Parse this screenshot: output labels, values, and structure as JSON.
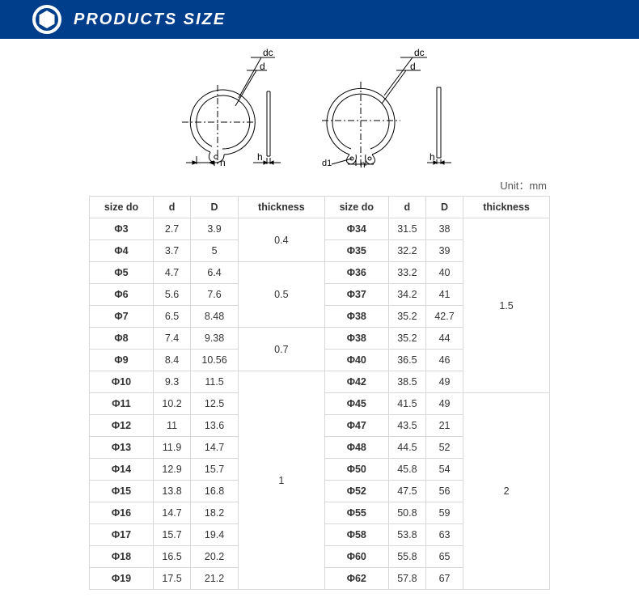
{
  "header": {
    "title": "PRODUCTS SIZE",
    "bar_color": "#003e8c",
    "title_color": "#ffffff"
  },
  "diagram": {
    "labels": {
      "dc": "dc",
      "d": "d",
      "n": "n",
      "h": "h",
      "d1": "d1"
    },
    "stroke": "#000000",
    "stroke_width": 1
  },
  "table": {
    "unit_label": "Unit：mm",
    "border_color": "#d8d8d8",
    "columns_left": [
      "size do",
      "d",
      "D",
      "thickness"
    ],
    "columns_right": [
      "size do",
      "d",
      "D",
      "thickness"
    ],
    "thickness_groups_left": [
      {
        "value": "0.4",
        "span": 2
      },
      {
        "value": "0.5",
        "span": 3
      },
      {
        "value": "0.7",
        "span": 2
      },
      {
        "value": "1",
        "span": 10
      }
    ],
    "thickness_groups_right": [
      {
        "value": "1.5",
        "span": 8
      },
      {
        "value": "2",
        "span": 9
      }
    ],
    "rows_left": [
      {
        "size": "Φ3",
        "d": "2.7",
        "D": "3.9"
      },
      {
        "size": "Φ4",
        "d": "3.7",
        "D": "5"
      },
      {
        "size": "Φ5",
        "d": "4.7",
        "D": "6.4"
      },
      {
        "size": "Φ6",
        "d": "5.6",
        "D": "7.6"
      },
      {
        "size": "Φ7",
        "d": "6.5",
        "D": "8.48"
      },
      {
        "size": "Φ8",
        "d": "7.4",
        "D": "9.38"
      },
      {
        "size": "Φ9",
        "d": "8.4",
        "D": "10.56"
      },
      {
        "size": "Φ10",
        "d": "9.3",
        "D": "11.5"
      },
      {
        "size": "Φ11",
        "d": "10.2",
        "D": "12.5"
      },
      {
        "size": "Φ12",
        "d": "11",
        "D": "13.6"
      },
      {
        "size": "Φ13",
        "d": "11.9",
        "D": "14.7"
      },
      {
        "size": "Φ14",
        "d": "12.9",
        "D": "15.7"
      },
      {
        "size": "Φ15",
        "d": "13.8",
        "D": "16.8"
      },
      {
        "size": "Φ16",
        "d": "14.7",
        "D": "18.2"
      },
      {
        "size": "Φ17",
        "d": "15.7",
        "D": "19.4"
      },
      {
        "size": "Φ18",
        "d": "16.5",
        "D": "20.2"
      },
      {
        "size": "Φ19",
        "d": "17.5",
        "D": "21.2"
      }
    ],
    "rows_right": [
      {
        "size": "Φ34",
        "d": "31.5",
        "D": "38"
      },
      {
        "size": "Φ35",
        "d": "32.2",
        "D": "39"
      },
      {
        "size": "Φ36",
        "d": "33.2",
        "D": "40"
      },
      {
        "size": "Φ37",
        "d": "34.2",
        "D": "41"
      },
      {
        "size": "Φ38",
        "d": "35.2",
        "D": "42.7"
      },
      {
        "size": "Φ38",
        "d": "35.2",
        "D": "44"
      },
      {
        "size": "Φ40",
        "d": "36.5",
        "D": "46"
      },
      {
        "size": "Φ42",
        "d": "38.5",
        "D": "49"
      },
      {
        "size": "Φ45",
        "d": "41.5",
        "D": "49"
      },
      {
        "size": "Φ47",
        "d": "43.5",
        "D": "21"
      },
      {
        "size": "Φ48",
        "d": "44.5",
        "D": "52"
      },
      {
        "size": "Φ50",
        "d": "45.8",
        "D": "54"
      },
      {
        "size": "Φ52",
        "d": "47.5",
        "D": "56"
      },
      {
        "size": "Φ55",
        "d": "50.8",
        "D": "59"
      },
      {
        "size": "Φ58",
        "d": "53.8",
        "D": "63"
      },
      {
        "size": "Φ60",
        "d": "55.8",
        "D": "65"
      },
      {
        "size": "Φ62",
        "d": "57.8",
        "D": "67"
      }
    ]
  }
}
